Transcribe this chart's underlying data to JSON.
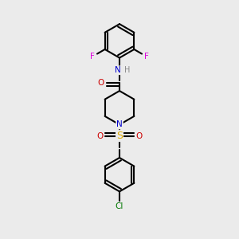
{
  "background_color": "#ebebeb",
  "bond_color": "#000000",
  "bond_width": 1.5,
  "atom_colors": {
    "C": "#000000",
    "N": "#0000cc",
    "O": "#cc0000",
    "S": "#ddaa00",
    "F": "#dd00dd",
    "Cl": "#007700",
    "H": "#888888"
  },
  "figsize": [
    3.0,
    3.0
  ],
  "dpi": 100
}
